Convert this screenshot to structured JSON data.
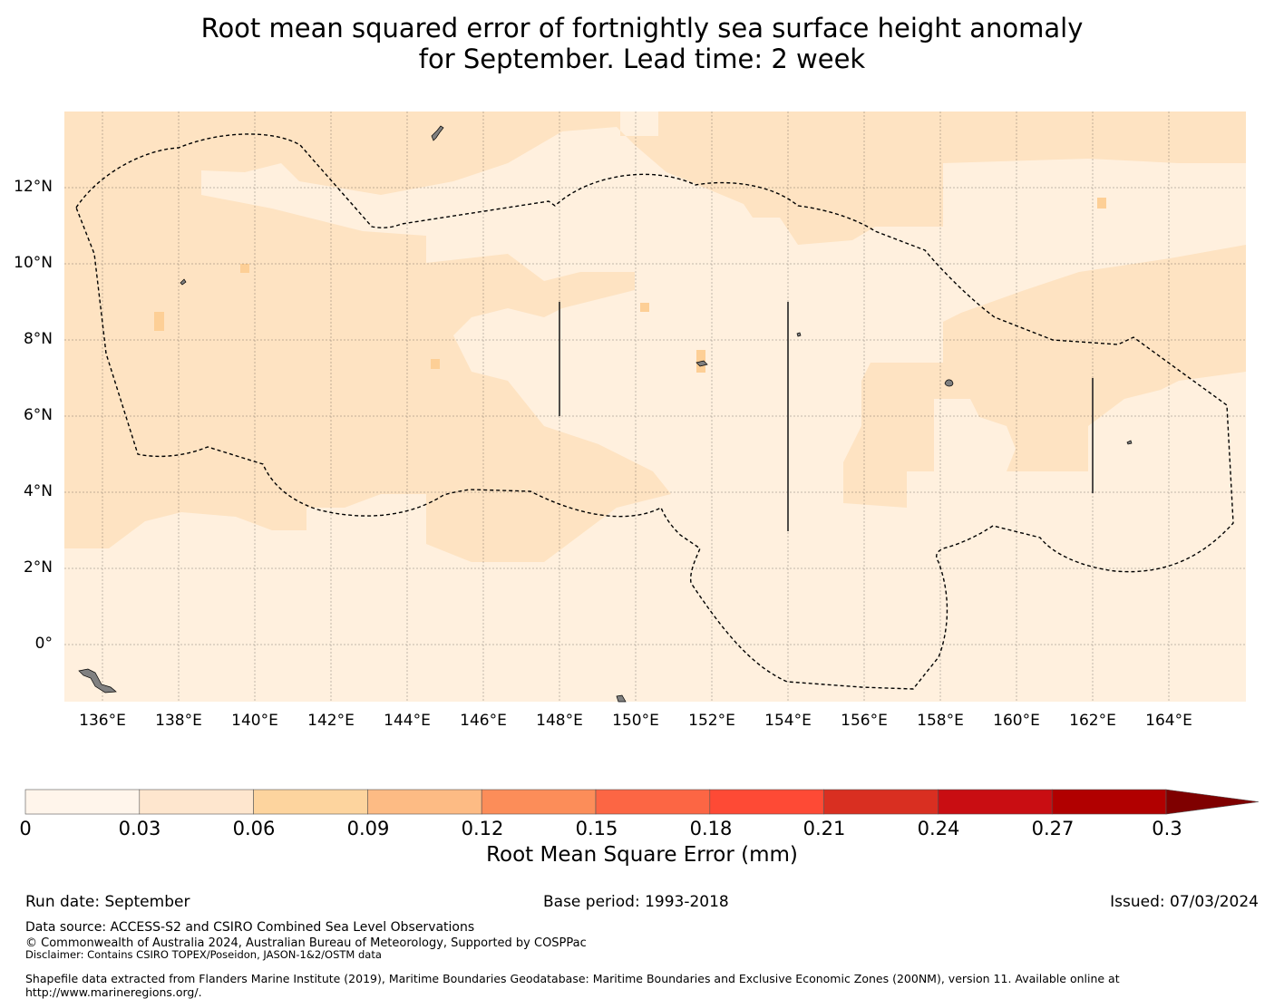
{
  "title": {
    "line1": "Root mean squared error of fortnightly sea surface height anomaly",
    "line2": "for September. Lead time: 2 week"
  },
  "map": {
    "lon_range": [
      135,
      166
    ],
    "lat_range": [
      -1.5,
      14
    ],
    "lon_ticks": [
      "136°E",
      "138°E",
      "140°E",
      "142°E",
      "144°E",
      "146°E",
      "148°E",
      "150°E",
      "152°E",
      "154°E",
      "156°E",
      "158°E",
      "160°E",
      "162°E",
      "164°E"
    ],
    "lat_ticks": [
      "12°N",
      "10°N",
      "8°N",
      "6°N",
      "4°N",
      "2°N",
      "0°"
    ],
    "colors": {
      "level_0": "#fff0de",
      "level_1": "#fee3c2",
      "level_2": "#fdcf96",
      "land": "#808080",
      "boundary": "#000000"
    }
  },
  "colorbar": {
    "label": "Root Mean Square Error (mm)",
    "ticks": [
      "0",
      "0.03",
      "0.06",
      "0.09",
      "0.12",
      "0.15",
      "0.18",
      "0.21",
      "0.24",
      "0.27",
      "0.3"
    ],
    "colors": [
      "#fff5eb",
      "#fee6ce",
      "#fdd49e",
      "#fdbb84",
      "#fc8d59",
      "#fc6644",
      "#fe4a35",
      "#d92f21",
      "#c90d12",
      "#b10000",
      "#7f0000"
    ]
  },
  "footer": {
    "run_date": "Run date: September",
    "base_period": "Base period: 1993-2018",
    "issued": "Issued: 07/03/2024",
    "data_source": "Data source: ACCESS-S2 and CSIRO Combined Sea Level Observations",
    "copyright": "© Commonwealth of Australia 2024, Australian Bureau of Meteorology, Supported by COSPPac",
    "disclaimer": "Disclaimer: Contains CSIRO TOPEX/Poseidon, JASON-1&2/OSTM data",
    "shapefile": "Shapefile data extracted from Flanders Marine Institute (2019), Maritime Boundaries Geodatabase: Maritime Boundaries and Exclusive Economic Zones (200NM), version 11. Available online at http://www.marineregions.org/."
  }
}
